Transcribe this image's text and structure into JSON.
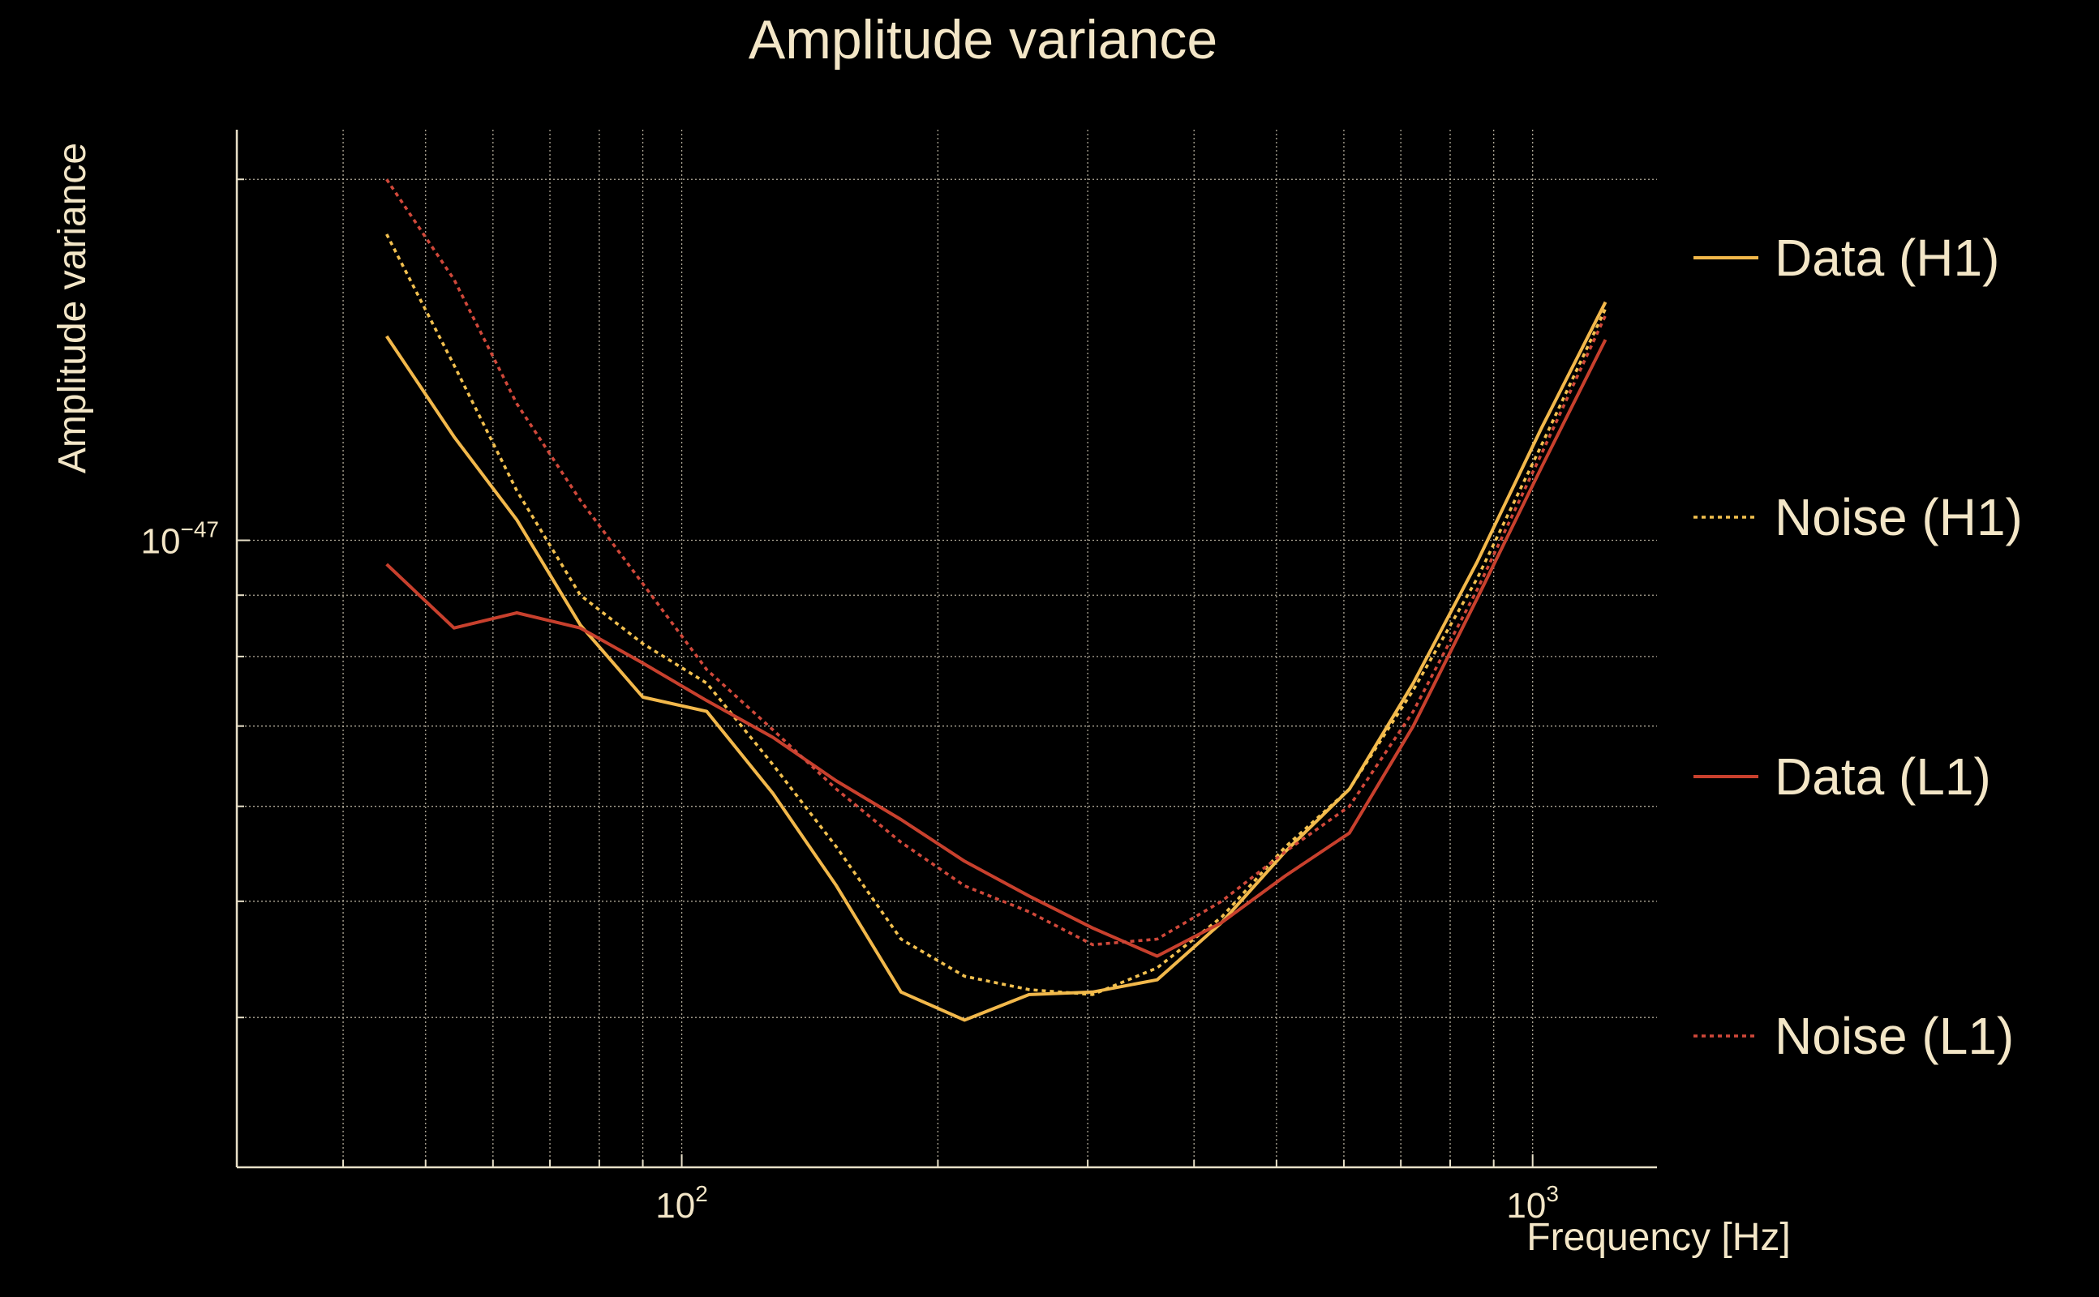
{
  "chart_data": {
    "type": "line",
    "title": "Amplitude variance",
    "xlabel": "Frequency [Hz]",
    "ylabel": "Amplitude variance",
    "xscale": "log",
    "yscale": "log",
    "xlim": [
      30,
      1400
    ],
    "ylim": [
      3e-48,
      2.2e-47
    ],
    "x_tick_labels": [
      {
        "value": 100,
        "base": "10",
        "exp": "2"
      },
      {
        "value": 1000,
        "base": "10",
        "exp": "3"
      }
    ],
    "y_tick_labels": [
      {
        "value": 1e-47,
        "base": "10",
        "exp": "−47"
      }
    ],
    "minor_x_grid": [
      40,
      50,
      60,
      70,
      80,
      90,
      200,
      300,
      400,
      500,
      600,
      700,
      800,
      900
    ],
    "minor_y_grid": [
      4e-48,
      5e-48,
      6e-48,
      7e-48,
      8e-48,
      9e-48,
      2e-47
    ],
    "legend_position": "right",
    "series": [
      {
        "name": "Data (H1)",
        "color": "#f2b84b",
        "style": "solid",
        "x": [
          45,
          54,
          64,
          76,
          90,
          107,
          128,
          152,
          181,
          215,
          256,
          304,
          362,
          431,
          512,
          609,
          724,
          861,
          1024,
          1218
        ],
        "y": [
          1.48e-47,
          1.22e-47,
          1.04e-47,
          8.5e-48,
          7.4e-48,
          7.2e-48,
          6.15e-48,
          5.15e-48,
          4.2e-48,
          3.98e-48,
          4.18e-48,
          4.2e-48,
          4.3e-48,
          4.8e-48,
          5.5e-48,
          6.2e-48,
          7.6e-48,
          9.6e-48,
          1.24e-47,
          1.58e-47
        ]
      },
      {
        "name": "Noise (H1)",
        "color": "#f2c04f",
        "style": "dotted",
        "x": [
          45,
          54,
          64,
          76,
          90,
          107,
          128,
          152,
          181,
          215,
          256,
          304,
          362,
          431,
          512,
          609,
          724,
          861,
          1024,
          1218
        ],
        "y": [
          1.8e-47,
          1.4e-47,
          1.1e-47,
          9e-48,
          8.2e-48,
          7.6e-48,
          6.5e-48,
          5.55e-48,
          4.65e-48,
          4.33e-48,
          4.22e-48,
          4.18e-48,
          4.4e-48,
          4.85e-48,
          5.55e-48,
          6.2e-48,
          7.5e-48,
          9.3e-48,
          1.2e-47,
          1.56e-47
        ]
      },
      {
        "name": "Data (L1)",
        "color": "#c8402d",
        "style": "solid",
        "x": [
          45,
          54,
          64,
          76,
          90,
          107,
          128,
          152,
          181,
          215,
          256,
          304,
          362,
          431,
          512,
          609,
          724,
          861,
          1024,
          1218
        ],
        "y": [
          9.55e-48,
          8.45e-48,
          8.7e-48,
          8.45e-48,
          7.9e-48,
          7.35e-48,
          6.85e-48,
          6.3e-48,
          5.85e-48,
          5.4e-48,
          5.05e-48,
          4.75e-48,
          4.5e-48,
          4.8e-48,
          5.25e-48,
          5.7e-48,
          7e-48,
          8.95e-48,
          1.15e-47,
          1.47e-47
        ]
      },
      {
        "name": "Noise (L1)",
        "color": "#d0483a",
        "style": "dotted",
        "x": [
          45,
          54,
          64,
          76,
          90,
          107,
          128,
          152,
          181,
          215,
          256,
          304,
          362,
          431,
          512,
          609,
          724,
          861,
          1024,
          1218
        ],
        "y": [
          2e-47,
          1.65e-47,
          1.3e-47,
          1.08e-47,
          9.2e-48,
          7.8e-48,
          6.95e-48,
          6.2e-48,
          5.6e-48,
          5.15e-48,
          4.9e-48,
          4.6e-48,
          4.65e-48,
          5e-48,
          5.5e-48,
          6e-48,
          7.2e-48,
          9.1e-48,
          1.18e-47,
          1.54e-47
        ]
      }
    ]
  }
}
